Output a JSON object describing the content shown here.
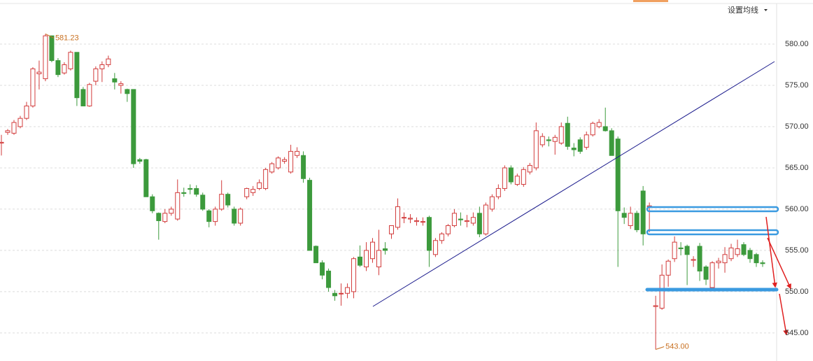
{
  "chart_data": {
    "type": "candlestick",
    "button": "设置均线",
    "up_color": "#d23b3b",
    "down_color": "#3c9a3c",
    "ylim": [
      541.6,
      585.34
    ],
    "yticks": [
      {
        "value": 545,
        "label": "545.00"
      },
      {
        "value": 550,
        "label": "550.00"
      },
      {
        "value": 555,
        "label": "555.00"
      },
      {
        "value": 560,
        "label": "560.00"
      },
      {
        "value": 565,
        "label": "565.00"
      },
      {
        "value": 570,
        "label": "570.00"
      },
      {
        "value": 575,
        "label": "575.00"
      },
      {
        "value": 580,
        "label": "580.00"
      }
    ],
    "grid": true,
    "annotations": [
      581.23,
      {
        "value": 543,
        "label": "543.00"
      }
    ],
    "candles": [
      [
        568,
        569,
        566.5,
        568.1
      ],
      [
        569.3,
        569.7,
        569,
        569.5
      ],
      [
        569.2,
        570.8,
        569,
        570.5
      ],
      [
        570,
        571.3,
        569.8,
        571
      ],
      [
        571,
        573,
        570.8,
        572.5
      ],
      [
        572.5,
        577.2,
        572.3,
        577
      ],
      [
        576.4,
        578,
        574.5,
        576.6
      ],
      [
        575.8,
        581.23,
        575.5,
        581
      ],
      [
        581,
        581,
        577.8,
        578
      ],
      [
        578,
        578.3,
        576,
        576.3
      ],
      [
        576.5,
        577.8,
        576.3,
        577.5
      ],
      [
        577,
        579.2,
        576.8,
        579
      ],
      [
        579,
        579,
        572.5,
        573.5
      ],
      [
        574.5,
        574.8,
        572.5,
        572.5
      ],
      [
        572.5,
        575.3,
        572.4,
        575.1
      ],
      [
        575.5,
        577.3,
        575,
        577
      ],
      [
        577,
        577.9,
        575.4,
        577.5
      ],
      [
        577.5,
        578.6,
        577.2,
        578.2
      ],
      [
        575.8,
        576.5,
        574.5,
        575.4
      ],
      [
        575,
        575.5,
        574,
        575.2
      ],
      [
        574.5,
        574.6,
        573,
        574
      ],
      [
        574.5,
        574.5,
        565,
        565.5
      ],
      [
        566,
        566.2,
        565.5,
        565.8
      ],
      [
        566,
        566.1,
        561.5,
        561.5
      ],
      [
        561.5,
        561.8,
        559.5,
        559.8
      ],
      [
        559.5,
        559.6,
        556.3,
        558.6
      ],
      [
        558.5,
        560,
        558.3,
        559.5
      ],
      [
        559.5,
        560.3,
        559.2,
        560
      ],
      [
        558.8,
        563.6,
        558.6,
        562
      ],
      [
        562,
        562.6,
        561.5,
        561.9
      ],
      [
        562.5,
        563,
        561.8,
        562.4
      ],
      [
        562.5,
        562.9,
        561.5,
        561.8
      ],
      [
        561.7,
        562,
        559.8,
        560
      ],
      [
        559.8,
        560,
        557.8,
        558.5
      ],
      [
        558.5,
        560.3,
        558,
        560
      ],
      [
        560,
        563.5,
        559.8,
        561.8
      ],
      [
        561.8,
        562,
        560.2,
        560.5
      ],
      [
        560,
        560.3,
        558,
        558.3
      ],
      [
        558.3,
        560.2,
        558,
        560
      ],
      [
        561.5,
        562.6,
        561.2,
        562.5
      ],
      [
        562,
        562.8,
        561.6,
        562.4
      ],
      [
        562.5,
        563.6,
        562.3,
        563.2
      ],
      [
        562.5,
        565,
        562.3,
        564.8
      ],
      [
        564.5,
        565.7,
        564.3,
        565.5
      ],
      [
        565,
        566.4,
        564.8,
        566.2
      ],
      [
        565.8,
        566.3,
        565.5,
        566
      ],
      [
        564.5,
        567.8,
        564.3,
        567
      ],
      [
        566.5,
        567.5,
        566.2,
        567
      ],
      [
        566.5,
        567,
        563.2,
        563.7
      ],
      [
        563.5,
        563.8,
        555,
        555
      ],
      [
        555.5,
        555.6,
        553.5,
        553.5
      ],
      [
        553.5,
        553.8,
        551.5,
        552
      ],
      [
        552.5,
        552.8,
        550,
        550.5
      ],
      [
        549.8,
        550.2,
        548.9,
        549.5
      ],
      [
        549.8,
        551,
        548.3,
        549.8
      ],
      [
        549.8,
        551,
        549.2,
        550.5
      ],
      [
        550,
        554.2,
        549.2,
        554
      ],
      [
        554.2,
        555.6,
        553,
        553.2
      ],
      [
        553,
        556,
        552.5,
        555
      ],
      [
        554,
        556.5,
        553.5,
        556
      ],
      [
        553,
        557.5,
        552,
        555
      ],
      [
        555.2,
        556,
        554.5,
        555
      ],
      [
        557,
        558,
        556.4,
        558
      ],
      [
        557.8,
        561.3,
        557.5,
        560.3
      ],
      [
        559,
        559.6,
        558.3,
        559
      ],
      [
        558.8,
        559.4,
        558.3,
        558.9
      ],
      [
        558.5,
        559,
        558,
        558.6
      ],
      [
        558.5,
        559,
        558,
        558.5
      ],
      [
        559,
        559.2,
        553,
        555
      ],
      [
        554.5,
        556.5,
        554.2,
        556.2
      ],
      [
        556.2,
        557.2,
        555.8,
        557
      ],
      [
        557,
        558.2,
        556.7,
        558
      ],
      [
        558,
        560,
        557.8,
        559.5
      ],
      [
        558.8,
        559.6,
        558,
        558.7
      ],
      [
        558.5,
        559.3,
        557.8,
        558.6
      ],
      [
        558.3,
        559.6,
        558,
        559
      ],
      [
        559.5,
        560.3,
        556.6,
        557
      ],
      [
        557,
        560.8,
        556.8,
        560.5
      ],
      [
        560,
        561.8,
        559.7,
        561.5
      ],
      [
        561.5,
        563,
        561.2,
        562.5
      ],
      [
        562.5,
        565.3,
        562.2,
        565
      ],
      [
        565,
        565.3,
        563,
        563.3
      ],
      [
        563,
        564.3,
        562.8,
        564
      ],
      [
        563,
        565.1,
        562.7,
        564.8
      ],
      [
        564.5,
        565.6,
        564.2,
        565.3
      ],
      [
        565,
        570.5,
        564.7,
        569.5
      ],
      [
        567.8,
        569.2,
        567.5,
        568.8
      ],
      [
        568.4,
        568.8,
        567.6,
        568.3
      ],
      [
        568.2,
        569,
        566.6,
        568.7
      ],
      [
        568,
        570.5,
        567.8,
        570
      ],
      [
        570.4,
        571.2,
        567.2,
        567.6
      ],
      [
        567.4,
        568,
        566.4,
        567.2
      ],
      [
        568.4,
        568.7,
        566.7,
        567
      ],
      [
        567.5,
        569.4,
        567.2,
        569
      ],
      [
        569,
        570.6,
        568.8,
        570.4
      ],
      [
        570,
        570.9,
        569.8,
        570.5
      ],
      [
        570,
        572.3,
        569.4,
        569.5
      ],
      [
        569.5,
        569.8,
        566.5,
        566.5
      ],
      [
        568.5,
        568.8,
        553,
        559.8
      ],
      [
        559.5,
        560.2,
        558.2,
        559
      ],
      [
        558,
        560.3,
        557.6,
        559.5
      ],
      [
        559.5,
        559.8,
        557.2,
        557.5
      ],
      [
        562.2,
        562.8,
        555.6,
        557
      ],
      [
        560.3,
        560.8,
        557.2,
        560.4
      ],
      [
        548.2,
        549.5,
        543,
        548.3
      ],
      [
        548,
        553.3,
        547.8,
        552
      ],
      [
        552,
        553.9,
        550.6,
        553.7
      ],
      [
        554,
        556.7,
        553.6,
        556
      ],
      [
        555.3,
        556,
        554.4,
        555.2
      ],
      [
        555.5,
        555.7,
        550.8,
        554.5
      ],
      [
        553.8,
        554.3,
        553,
        553.9
      ],
      [
        555.5,
        555.9,
        551.3,
        552.5
      ],
      [
        553,
        553.2,
        550.8,
        551.5
      ],
      [
        550.5,
        553.7,
        550.2,
        553.5
      ],
      [
        553.5,
        554.1,
        552.8,
        553.7
      ],
      [
        553.5,
        555.4,
        552.3,
        554.5
      ],
      [
        554,
        555.8,
        553.7,
        555.3
      ],
      [
        554.5,
        556.3,
        554.2,
        555.2
      ],
      [
        555.7,
        556,
        554.3,
        554.5
      ],
      [
        555,
        555.3,
        553.5,
        554
      ],
      [
        554.5,
        554.7,
        553,
        553.5
      ],
      [
        553.5,
        553.8,
        553,
        553.4
      ]
    ]
  }
}
